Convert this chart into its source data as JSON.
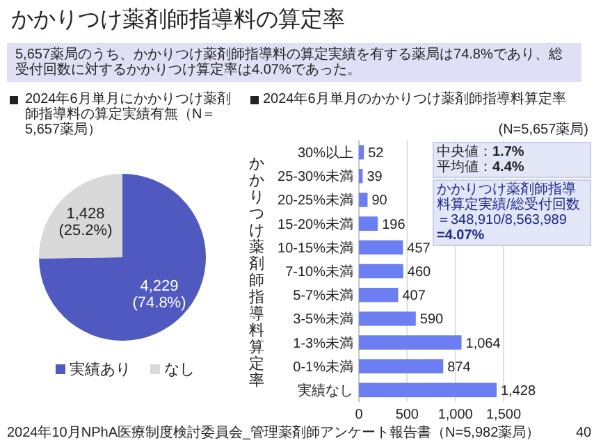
{
  "chart_data": [
    {
      "type": "pie",
      "title": "2024年6月単月にかかりつけ薬剤師指導料の算定実績有無（N＝5,657薬局）",
      "categories": [
        "実績あり",
        "なし"
      ],
      "values": [
        4229,
        1428
      ],
      "colors": [
        "#5059c0",
        "#d9d9d9"
      ],
      "value_labels": [
        "4,229 (74.8%)",
        "1,428 (25.2%)"
      ],
      "legend": "bottom",
      "annotations": [
        "かかりつけ薬剤師指導料の算定率",
        "5,657薬局のうち、かかりつけ薬剤師指導料の算定実績を有する薬局は74.8%であり、総受付回数に対するかかりつけ算定率は4.07%であった。",
        "2024年10月NPhA医療制度検討委員会_管理薬剤師アンケート報告書（N=5,982薬局）",
        "40"
      ]
    },
    {
      "type": "bar",
      "orientation": "horizontal",
      "title": "2024年6月単月のかかりつけ薬剤師指導料算定率",
      "subtitle": "(N=5,657薬局)",
      "ylabel": "かかりつけ薬剤師指導料算定率",
      "categories": [
        "30%以上",
        "25-30%未満",
        "20-25%未満",
        "15-20%未満",
        "10-15%未満",
        "7-10%未満",
        "5-7%未満",
        "3-5%未満",
        "1-3%未満",
        "0-1%未満",
        "実績なし"
      ],
      "values": [
        52,
        39,
        90,
        196,
        457,
        460,
        407,
        590,
        1064,
        874,
        1428
      ],
      "color": "#6b7ff2",
      "value_labels": [
        "52",
        "39",
        "90",
        "196",
        "457",
        "460",
        "407",
        "590",
        "1,064",
        "874",
        "1,428"
      ],
      "xlim": [
        0,
        1500
      ],
      "xticks": [
        0,
        500,
        {
          "value": 1000,
          "label": "1,000"
        },
        {
          "value": 1500,
          "label": "1,500"
        }
      ],
      "grid": "x",
      "annotations": [
        "中央値：**1.7%**",
        "平均値：**4.4%**",
        "かかりつけ薬剤師指導料算定実績/総受付回数",
        "＝348,910/8,563,989",
        "**=4.07%**"
      ]
    }
  ]
}
